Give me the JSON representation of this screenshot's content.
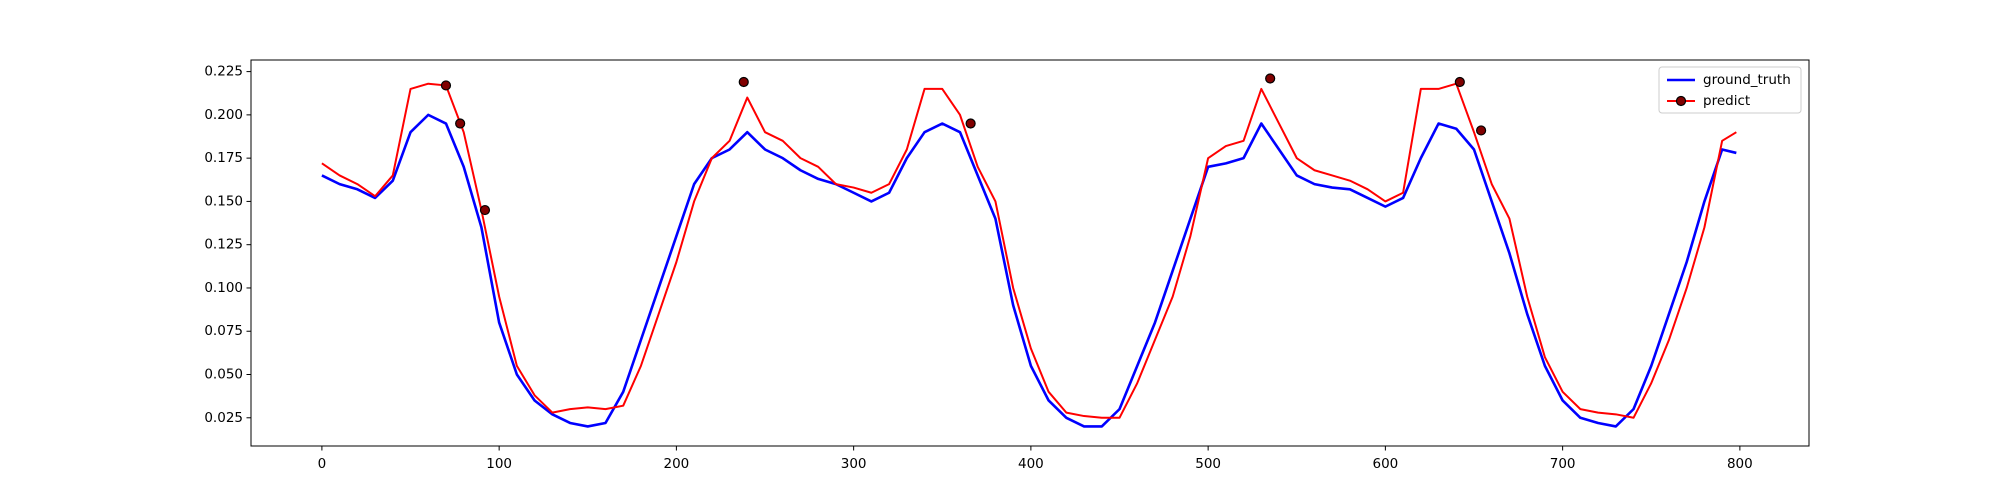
{
  "chart_data": {
    "type": "line",
    "x": [
      0,
      10,
      20,
      30,
      40,
      50,
      60,
      70,
      80,
      90,
      100,
      110,
      120,
      130,
      140,
      150,
      160,
      170,
      180,
      190,
      200,
      210,
      220,
      230,
      240,
      250,
      260,
      270,
      280,
      290,
      300,
      310,
      320,
      330,
      340,
      350,
      360,
      370,
      380,
      390,
      400,
      410,
      420,
      430,
      440,
      450,
      460,
      470,
      480,
      490,
      500,
      510,
      520,
      530,
      540,
      550,
      560,
      570,
      580,
      590,
      600,
      610,
      620,
      630,
      640,
      650,
      660,
      670,
      680,
      690,
      700,
      710,
      720,
      730,
      740,
      750,
      760,
      770,
      780,
      790,
      798
    ],
    "series": [
      {
        "name": "ground_truth",
        "color": "#0000ff",
        "values": [
          0.165,
          0.16,
          0.157,
          0.152,
          0.162,
          0.19,
          0.2,
          0.195,
          0.17,
          0.135,
          0.08,
          0.05,
          0.035,
          0.027,
          0.022,
          0.02,
          0.022,
          0.04,
          0.07,
          0.1,
          0.13,
          0.16,
          0.175,
          0.18,
          0.19,
          0.18,
          0.175,
          0.168,
          0.163,
          0.16,
          0.155,
          0.15,
          0.155,
          0.175,
          0.19,
          0.195,
          0.19,
          0.165,
          0.14,
          0.09,
          0.055,
          0.035,
          0.025,
          0.02,
          0.02,
          0.03,
          0.055,
          0.08,
          0.11,
          0.14,
          0.17,
          0.172,
          0.175,
          0.195,
          0.18,
          0.165,
          0.16,
          0.158,
          0.157,
          0.152,
          0.147,
          0.152,
          0.175,
          0.195,
          0.192,
          0.18,
          0.15,
          0.12,
          0.085,
          0.055,
          0.035,
          0.025,
          0.022,
          0.02,
          0.03,
          0.055,
          0.085,
          0.115,
          0.15,
          0.18,
          0.178
        ]
      },
      {
        "name": "predict",
        "color": "#ff0000",
        "values": [
          0.172,
          0.165,
          0.16,
          0.153,
          0.165,
          0.215,
          0.218,
          0.217,
          0.19,
          0.145,
          0.095,
          0.055,
          0.038,
          0.028,
          0.03,
          0.031,
          0.03,
          0.032,
          0.055,
          0.085,
          0.115,
          0.15,
          0.175,
          0.185,
          0.21,
          0.19,
          0.185,
          0.175,
          0.17,
          0.16,
          0.158,
          0.155,
          0.16,
          0.18,
          0.215,
          0.215,
          0.2,
          0.17,
          0.15,
          0.1,
          0.065,
          0.04,
          0.028,
          0.026,
          0.025,
          0.025,
          0.045,
          0.07,
          0.095,
          0.13,
          0.175,
          0.182,
          0.185,
          0.215,
          0.195,
          0.175,
          0.168,
          0.165,
          0.162,
          0.157,
          0.15,
          0.155,
          0.215,
          0.215,
          0.218,
          0.19,
          0.16,
          0.14,
          0.095,
          0.06,
          0.04,
          0.03,
          0.028,
          0.027,
          0.025,
          0.045,
          0.07,
          0.1,
          0.135,
          0.185,
          0.19
        ],
        "marker_x": [
          70,
          78,
          92,
          238,
          366,
          535,
          642,
          654
        ],
        "marker_values": [
          0.217,
          0.195,
          0.145,
          0.219,
          0.195,
          0.221,
          0.219,
          0.191
        ]
      }
    ],
    "xlim": [
      -40,
      839
    ],
    "ylim": [
      0.0087,
      0.2317
    ],
    "xticks": [
      0,
      100,
      200,
      300,
      400,
      500,
      600,
      700,
      800
    ],
    "yticks": [
      0.025,
      {
        "value": 0.05,
        "label": "0.050"
      },
      0.075,
      {
        "value": 0.1,
        "label": "0.100"
      },
      0.125,
      {
        "value": 0.15,
        "label": "0.150"
      },
      0.175,
      {
        "value": 0.2,
        "label": "0.200"
      },
      0.225
    ],
    "legend": "upper right"
  }
}
